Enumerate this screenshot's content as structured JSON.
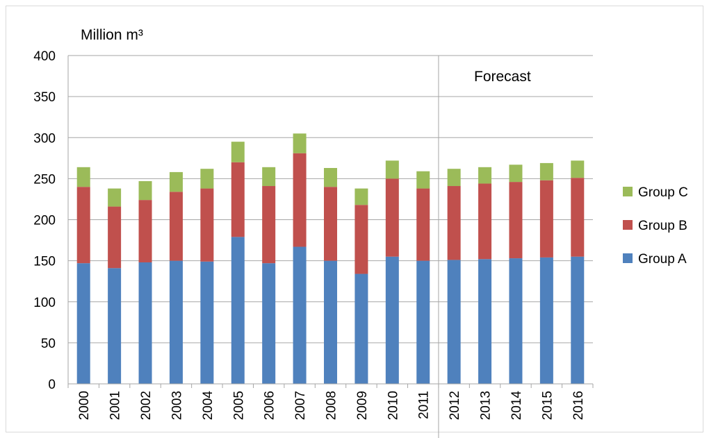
{
  "chart_data": {
    "type": "bar",
    "stacked": true,
    "ylabel": "Million m³",
    "annotation": "Forecast",
    "ylim": [
      0,
      400
    ],
    "yticks": [
      0,
      50,
      100,
      150,
      200,
      250,
      300,
      350,
      400
    ],
    "grid": true,
    "legend_position": "right",
    "categories": [
      "2000",
      "2001",
      "2002",
      "2003",
      "2004",
      "2005",
      "2006",
      "2007",
      "2008",
      "2009",
      "2010",
      "2011",
      "2012",
      "2013",
      "2014",
      "2015",
      "2016"
    ],
    "forecast_after": "2011",
    "series": [
      {
        "name": "Group A",
        "color": "#4f81bd",
        "values": [
          147,
          141,
          148,
          150,
          149,
          179,
          147,
          167,
          150,
          134,
          155,
          150,
          151,
          152,
          153,
          154,
          155
        ]
      },
      {
        "name": "Group B",
        "color": "#c0504d",
        "values": [
          93,
          75,
          76,
          84,
          89,
          91,
          94,
          114,
          90,
          84,
          95,
          88,
          90,
          92,
          93,
          94,
          96
        ]
      },
      {
        "name": "Group C",
        "color": "#9bbb59",
        "values": [
          24,
          22,
          23,
          24,
          24,
          25,
          23,
          24,
          23,
          20,
          22,
          21,
          21,
          20,
          21,
          21,
          21
        ]
      }
    ],
    "legend_order": [
      "Group C",
      "Group B",
      "Group A"
    ]
  }
}
